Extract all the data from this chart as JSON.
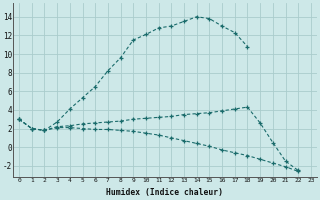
{
  "background_color": "#cde8e8",
  "grid_color": "#aacccc",
  "line_color": "#1a6b6b",
  "xlabel": "Humidex (Indice chaleur)",
  "xlim": [
    -0.5,
    23.5
  ],
  "ylim": [
    -3.2,
    15.5
  ],
  "xticks": [
    0,
    1,
    2,
    3,
    4,
    5,
    6,
    7,
    8,
    9,
    10,
    11,
    12,
    13,
    14,
    15,
    16,
    17,
    18,
    19,
    20,
    21,
    22,
    23
  ],
  "yticks": [
    -2,
    0,
    2,
    4,
    6,
    8,
    10,
    12,
    14
  ],
  "line1_x": [
    0,
    1,
    2,
    3,
    4,
    5,
    6,
    7,
    8,
    9,
    10,
    11,
    12,
    13,
    14,
    15,
    16,
    17,
    18
  ],
  "line1_y": [
    3.0,
    2.0,
    1.8,
    2.7,
    4.1,
    5.3,
    6.5,
    8.2,
    9.6,
    11.5,
    12.1,
    12.8,
    13.0,
    13.5,
    14.0,
    13.8,
    13.0,
    12.3,
    10.8
  ],
  "line2_x": [
    0,
    1,
    2,
    3,
    4,
    5,
    6,
    7,
    8,
    9,
    10,
    11,
    12,
    13,
    14,
    15,
    16,
    17,
    18,
    19,
    20,
    21,
    22
  ],
  "line2_y": [
    3.0,
    2.0,
    1.8,
    2.2,
    2.3,
    2.5,
    2.6,
    2.7,
    2.8,
    3.0,
    3.1,
    3.2,
    3.3,
    3.5,
    3.6,
    3.7,
    3.9,
    4.1,
    4.3,
    2.6,
    0.5,
    -1.5,
    -2.5
  ],
  "line3_x": [
    0,
    1,
    2,
    3,
    4,
    5,
    6,
    7,
    8,
    9,
    10,
    11,
    12,
    13,
    14,
    15,
    16,
    17,
    18,
    19,
    20,
    21,
    22
  ],
  "line3_y": [
    3.0,
    2.0,
    1.8,
    2.1,
    2.1,
    2.0,
    1.9,
    1.9,
    1.8,
    1.7,
    1.5,
    1.3,
    1.0,
    0.7,
    0.4,
    0.1,
    -0.3,
    -0.6,
    -0.9,
    -1.3,
    -1.7,
    -2.1,
    -2.6
  ]
}
